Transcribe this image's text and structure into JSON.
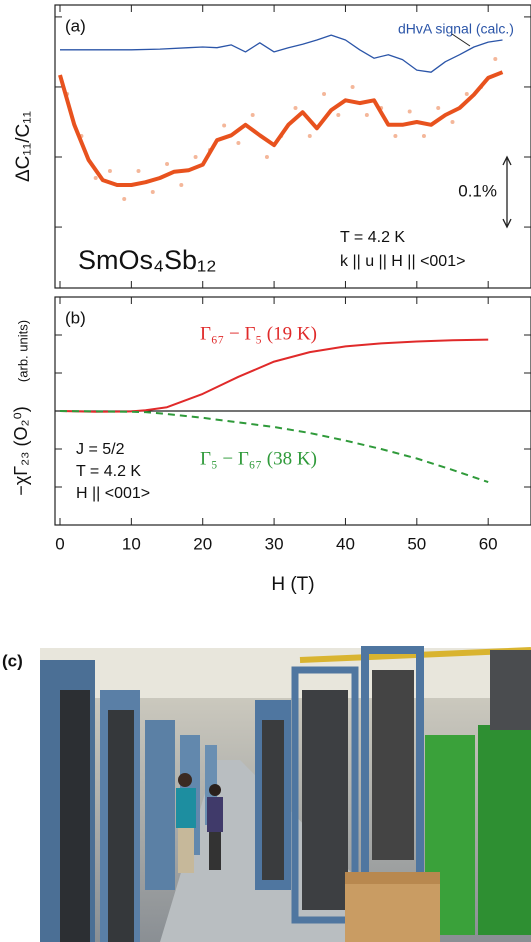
{
  "chart_data": [
    {
      "type": "line",
      "panel_label": "(a)",
      "y_label": "ΔC₁₁/C₁₁",
      "xlim": [
        -0.7,
        66
      ],
      "xticks": [
        0,
        10,
        20,
        30,
        40,
        50,
        60
      ],
      "show_xtick_labels": false,
      "ylim": [
        -0.187,
        0.217
      ],
      "yticks": [
        -0.1,
        0,
        0.1,
        0.2
      ],
      "series": [
        {
          "style": "dots",
          "color": "#f4b79a",
          "x": [
            1,
            3,
            5,
            7,
            9,
            11,
            13,
            15,
            17,
            19,
            21,
            23,
            25,
            27,
            29,
            31,
            33,
            35,
            37,
            39,
            41,
            43,
            45,
            47,
            49,
            51,
            53,
            55,
            57,
            59,
            61
          ],
          "values": [
            0.09,
            0.03,
            -0.03,
            -0.02,
            -0.06,
            -0.02,
            -0.05,
            -0.01,
            -0.04,
            0.0,
            0.01,
            0.045,
            0.02,
            0.06,
            0.0,
            0.03,
            0.07,
            0.03,
            0.09,
            0.06,
            0.1,
            0.06,
            0.07,
            0.03,
            0.065,
            0.03,
            0.07,
            0.05,
            0.09,
            0.1,
            0.14
          ]
        },
        {
          "style": "solid",
          "width": 4,
          "color": "#e8521e",
          "x": [
            0,
            2,
            4,
            6,
            8,
            10,
            12,
            14,
            16,
            18,
            20,
            22,
            24,
            26,
            28,
            30,
            32,
            34,
            36,
            38,
            40,
            42,
            44,
            46,
            48,
            50,
            52,
            54,
            56,
            58,
            60,
            62
          ],
          "values": [
            0.117,
            0.046,
            -0.004,
            -0.033,
            -0.04,
            -0.04,
            -0.036,
            -0.03,
            -0.021,
            -0.019,
            -0.011,
            0.024,
            0.031,
            0.046,
            0.031,
            0.017,
            0.046,
            0.064,
            0.041,
            0.067,
            0.081,
            0.077,
            0.081,
            0.046,
            0.046,
            0.05,
            0.046,
            0.06,
            0.07,
            0.089,
            0.113,
            0.121
          ]
        },
        {
          "name": "dHvA signal (calc.)",
          "style": "solid",
          "width": 1.3,
          "color": "#2b55a8",
          "x": [
            0,
            10,
            14,
            18,
            20,
            22,
            24,
            26,
            28,
            30,
            32,
            34,
            36,
            38,
            40,
            42,
            44,
            46,
            48,
            50,
            52,
            54,
            56,
            58,
            60,
            62
          ],
          "values": [
            0.153,
            0.153,
            0.154,
            0.156,
            0.157,
            0.156,
            0.16,
            0.15,
            0.163,
            0.15,
            0.156,
            0.161,
            0.167,
            0.174,
            0.167,
            0.153,
            0.141,
            0.146,
            0.139,
            0.124,
            0.121,
            0.136,
            0.146,
            0.157,
            0.164,
            0.167
          ]
        }
      ],
      "annotations": [
        {
          "text": "SmOs₄Sb₁₂"
        },
        {
          "text": "T = 4.2 K"
        },
        {
          "text": "k || u || H || <001>"
        }
      ],
      "scale_bar": {
        "label": "0.1%",
        "value": 0.1
      }
    },
    {
      "type": "line",
      "panel_label": "(b)",
      "y_label": "−χΓ₂₃ (O₂⁰)",
      "y_label_units": "(arb. units)",
      "x_label": "H (T)",
      "xlim": [
        -0.7,
        66
      ],
      "xticks": [
        0,
        10,
        20,
        30,
        40,
        50,
        60
      ],
      "show_xtick_labels": true,
      "ylim": [
        -3,
        3
      ],
      "yticks": [
        -2,
        -1,
        0,
        1,
        2
      ],
      "zero_line": true,
      "series": [
        {
          "name": "Γ₆₇ − Γ₅ (19 K)",
          "style": "solid",
          "width": 2,
          "color": "#e02a2a",
          "x": [
            0,
            5,
            10,
            12,
            15,
            20,
            25,
            30,
            35,
            40,
            45,
            50,
            55,
            60
          ],
          "values": [
            0,
            -0.02,
            -0.01,
            0.02,
            0.1,
            0.45,
            0.9,
            1.3,
            1.55,
            1.7,
            1.78,
            1.83,
            1.86,
            1.88
          ]
        },
        {
          "name": "Γ₅ − Γ₆₇ (38 K)",
          "style": "dashed",
          "width": 2,
          "color": "#2f9a3a",
          "x": [
            0,
            5,
            10,
            12,
            15,
            20,
            25,
            30,
            35,
            40,
            45,
            50,
            55,
            60
          ],
          "values": [
            0,
            -0.01,
            -0.02,
            -0.03,
            -0.08,
            -0.18,
            -0.3,
            -0.42,
            -0.58,
            -0.78,
            -1.0,
            -1.25,
            -1.55,
            -1.87
          ]
        }
      ],
      "annotations": [
        {
          "text": "J = 5/2"
        },
        {
          "text": "T = 4.2 K"
        },
        {
          "text": "H || <001>"
        }
      ]
    }
  ],
  "panel_c": {
    "label": "(c)"
  }
}
